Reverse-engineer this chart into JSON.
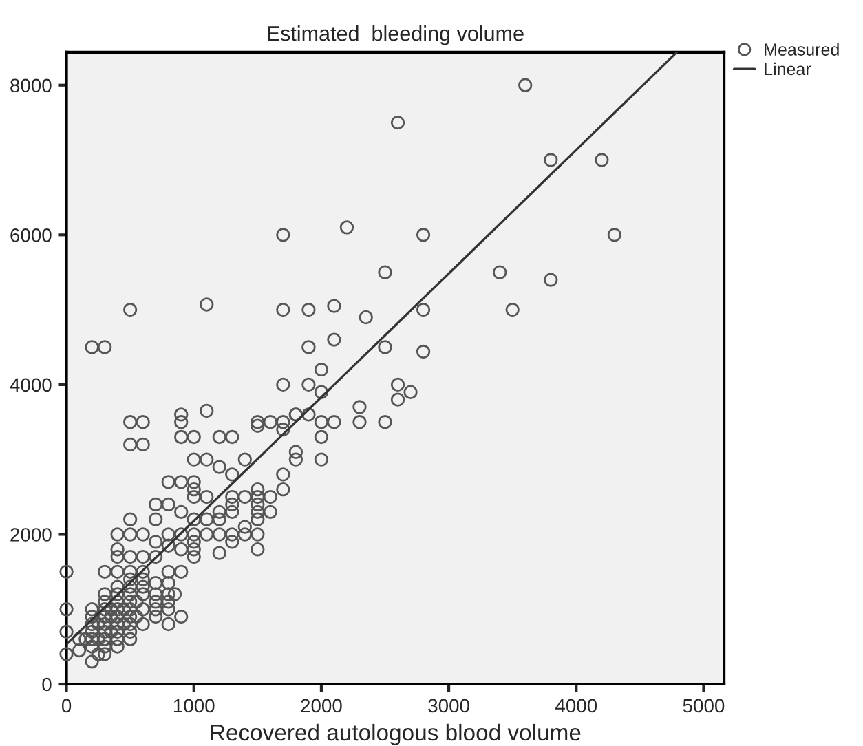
{
  "chart_data": {
    "type": "scatter",
    "title": "Estimated  bleeding volume",
    "xlabel": "Recovered autologous blood volume",
    "xlim": [
      0,
      5160
    ],
    "ylim": [
      0,
      8440
    ],
    "xticks": [
      0,
      1000,
      2000,
      3000,
      4000,
      5000
    ],
    "yticks": [
      0,
      2000,
      4000,
      6000,
      8000
    ],
    "grid": false,
    "legend": "top right",
    "series": [
      {
        "name": "Measured",
        "marker": "circle",
        "color": "#555555",
        "x": [
          2600,
          1700,
          2200,
          2800,
          2500,
          500,
          1100,
          1700,
          1900,
          2100,
          2350,
          2800,
          200,
          300,
          1900,
          2100,
          2500,
          2800,
          3600,
          3800,
          4200,
          4300,
          3400,
          3800,
          3500,
          2000,
          1700,
          1900,
          2000,
          2600,
          2700,
          2600,
          2300,
          1800,
          1900,
          1700,
          2000,
          2100,
          2300,
          2500,
          2000,
          1800,
          1800,
          2000,
          1700,
          1700,
          500,
          600,
          500,
          600,
          900,
          900,
          900,
          1000,
          1100,
          1200,
          1300,
          1000,
          1100,
          1200,
          1300,
          1400,
          1500,
          1500,
          1600,
          1700,
          1800,
          800,
          900,
          1000,
          1000,
          1000,
          1100,
          700,
          800,
          900,
          500,
          700,
          1000,
          400,
          500,
          600,
          800,
          900,
          1000,
          1100,
          1200,
          1300,
          1400,
          1500,
          1600,
          1500,
          1500,
          1500,
          1500,
          1600,
          1400,
          1300,
          1300,
          1300,
          1200,
          1200,
          1100,
          1300,
          1400,
          1500,
          1500,
          1200,
          1000,
          1000,
          1000,
          900,
          800,
          700,
          700,
          600,
          500,
          400,
          400,
          600,
          500,
          400,
          300,
          0,
          0,
          0,
          800,
          900,
          700,
          800,
          700,
          800,
          850,
          900,
          200,
          200,
          200,
          200,
          200,
          200,
          250,
          250,
          250,
          300,
          300,
          300,
          300,
          300,
          300,
          300,
          300,
          300,
          350,
          350,
          350,
          400,
          400,
          400,
          400,
          400,
          400,
          400,
          400,
          400,
          450,
          450,
          500,
          500,
          500,
          500,
          500,
          500,
          500,
          500,
          500,
          550,
          550,
          600,
          600,
          600,
          600,
          600,
          700,
          700,
          700,
          800,
          800,
          800,
          100,
          100,
          0,
          200,
          150
        ],
        "values": [
          7500,
          6000,
          6100,
          6000,
          5500,
          5000,
          5070,
          5000,
          5000,
          5050,
          4900,
          5000,
          4500,
          4500,
          4500,
          4600,
          4500,
          4440,
          8000,
          7000,
          7000,
          6000,
          5500,
          5400,
          5000,
          4200,
          4000,
          4000,
          3900,
          4000,
          3900,
          3800,
          3700,
          3600,
          3600,
          3500,
          3500,
          3500,
          3500,
          3500,
          3300,
          3100,
          3000,
          3000,
          2800,
          2600,
          3500,
          3500,
          3200,
          3200,
          3600,
          3500,
          3300,
          3300,
          3650,
          3300,
          3300,
          3000,
          3000,
          2900,
          2800,
          3000,
          3500,
          3450,
          3500,
          3400,
          3600,
          2700,
          2700,
          2700,
          2600,
          2500,
          2500,
          2400,
          2400,
          2300,
          2200,
          2200,
          2200,
          2000,
          2000,
          2000,
          2000,
          2000,
          2000,
          2000,
          2000,
          2000,
          2100,
          2200,
          2300,
          2300,
          2400,
          2500,
          2600,
          2500,
          2500,
          2500,
          2400,
          2300,
          2300,
          2200,
          2200,
          1900,
          2000,
          2000,
          1800,
          1750,
          1900,
          1800,
          1700,
          1800,
          1850,
          1900,
          1700,
          1700,
          1700,
          1800,
          1700,
          1500,
          1500,
          1500,
          1500,
          1500,
          1000,
          700,
          1500,
          1500,
          1350,
          1350,
          1200,
          1200,
          1200,
          900,
          500,
          600,
          700,
          800,
          900,
          1000,
          400,
          600,
          800,
          400,
          500,
          600,
          700,
          800,
          900,
          1000,
          1100,
          1200,
          700,
          900,
          1000,
          500,
          600,
          700,
          800,
          900,
          1000,
          1100,
          1200,
          1300,
          800,
          1000,
          600,
          700,
          800,
          900,
          1000,
          1100,
          1200,
          1300,
          1400,
          900,
          1100,
          800,
          1000,
          1200,
          1300,
          1400,
          900,
          1000,
          1100,
          800,
          1000,
          1100,
          450,
          600,
          400,
          300,
          600
        ]
      },
      {
        "name": "Linear",
        "type": "line",
        "marker": "none",
        "color": "#333333",
        "x": [
          0,
          4790
        ],
        "values": [
          530,
          8440
        ]
      }
    ]
  }
}
